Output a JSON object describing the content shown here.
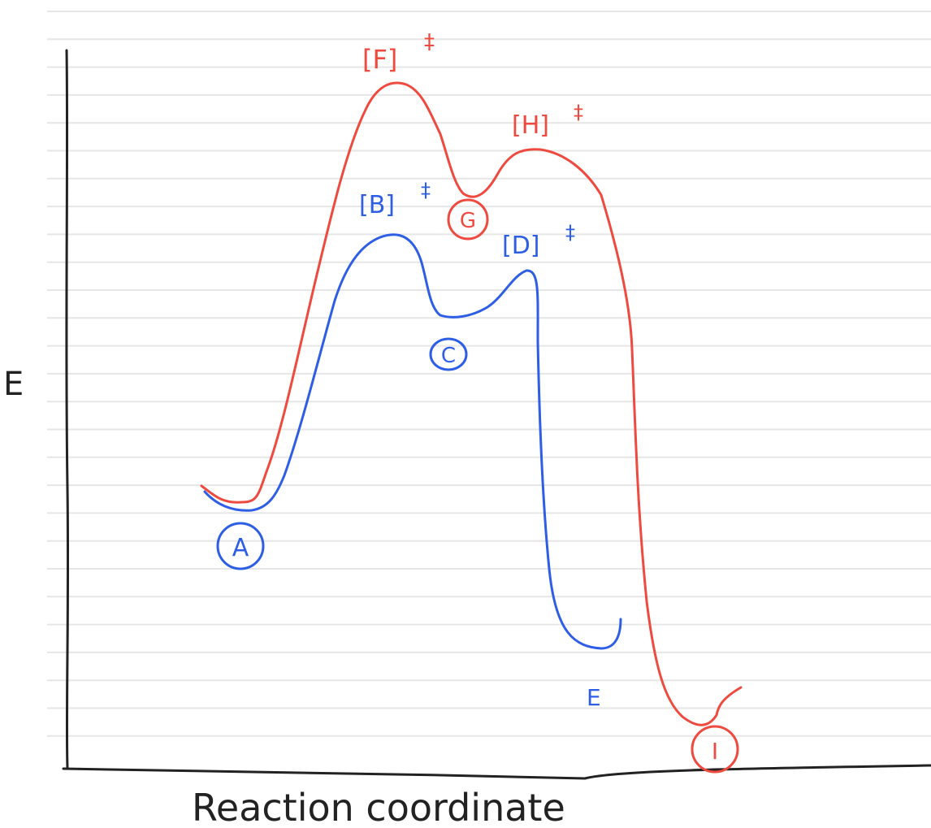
{
  "axes": {
    "ylabel": "E",
    "xlabel": "Reaction coordinate"
  },
  "colors": {
    "blue": "#2f5ee6",
    "red": "#ef4a3f",
    "axis": "#222222",
    "ruled_line": "#e6e6e6"
  },
  "diagram": {
    "blue_pathway": {
      "species": [
        {
          "id": "A",
          "label": "A",
          "circled": true
        },
        {
          "id": "B",
          "label": "[B]",
          "superscript": "‡"
        },
        {
          "id": "C",
          "label": "C",
          "circled": true
        },
        {
          "id": "D",
          "label": "[D]",
          "superscript": "‡"
        },
        {
          "id": "E",
          "label": "E",
          "circled": false
        }
      ]
    },
    "red_pathway": {
      "species": [
        {
          "id": "F",
          "label": "[F]",
          "superscript": "‡"
        },
        {
          "id": "G",
          "label": "G",
          "circled": true
        },
        {
          "id": "H",
          "label": "[H]",
          "superscript": "‡"
        },
        {
          "id": "I",
          "label": "I",
          "circled": true
        }
      ]
    }
  }
}
